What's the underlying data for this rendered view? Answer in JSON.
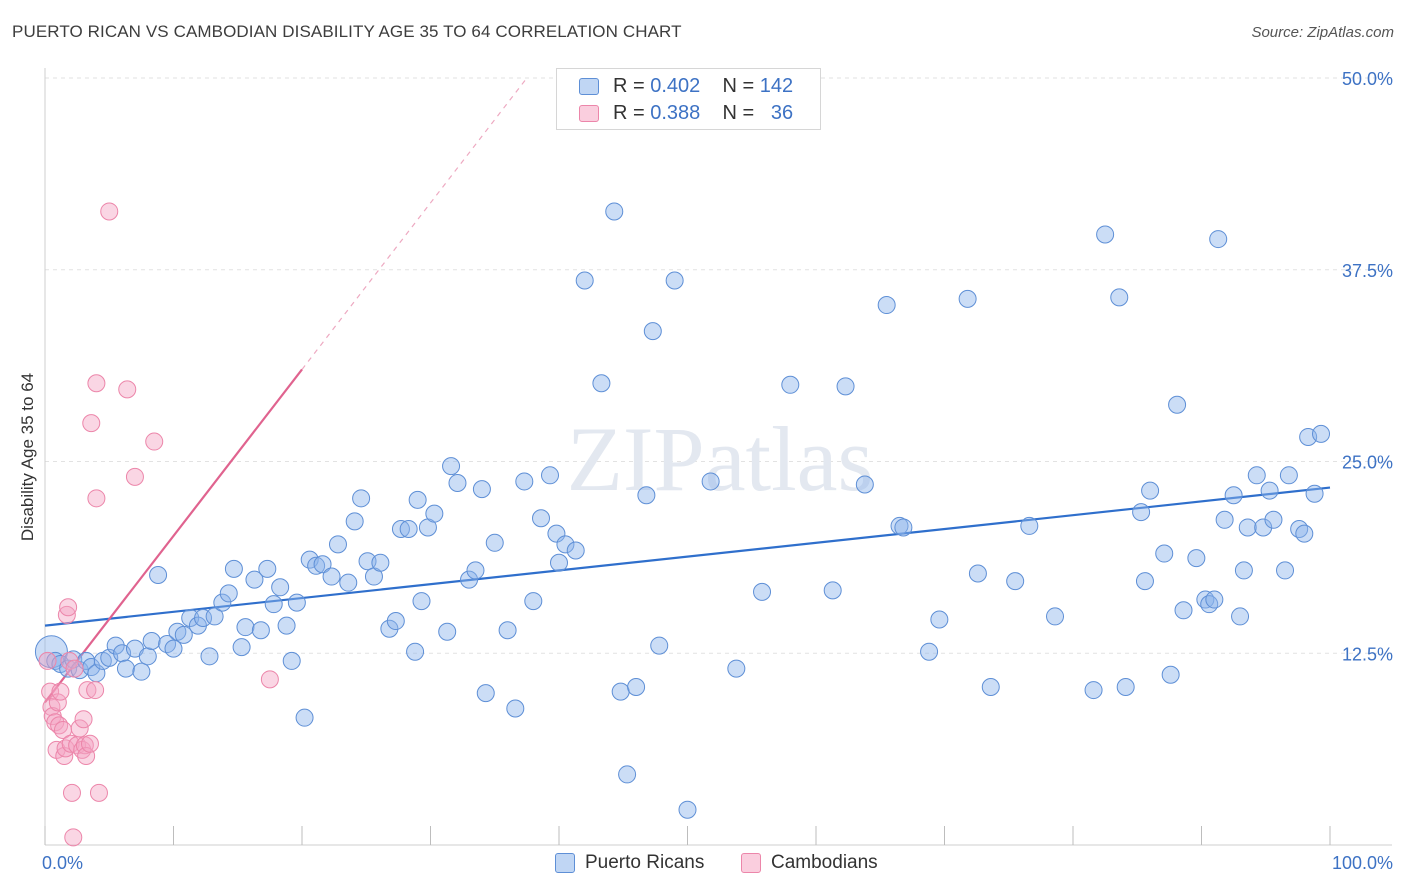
{
  "chart_data": {
    "type": "scatter",
    "title": "PUERTO RICAN VS CAMBODIAN DISABILITY AGE 35 TO 64 CORRELATION CHART",
    "source": "Source: ZipAtlas.com",
    "xlabel": "",
    "ylabel": "Disability Age 35 to 64",
    "x_tick_labels": [
      "0.0%",
      "100.0%"
    ],
    "y_tick_labels": [
      "12.5%",
      "25.0%",
      "37.5%",
      "50.0%"
    ],
    "y_tick_values": [
      12.5,
      25.0,
      37.5,
      50.0
    ],
    "xlim": [
      0,
      100
    ],
    "ylim": [
      0,
      50
    ],
    "watermark": "ZIPatlas",
    "legend": [
      {
        "name": "Puerto Ricans",
        "r_label": "R =",
        "r_value": "0.402",
        "n_label": "N =",
        "n_value": "142",
        "color": "#7ba7e6"
      },
      {
        "name": "Cambodians",
        "r_label": "R =",
        "r_value": "0.388",
        "n_label": "N =",
        "n_value": "36",
        "color": "#f08eb0"
      }
    ],
    "series": [
      {
        "name": "Puerto Ricans",
        "fill": "rgba(140,180,235,0.45)",
        "stroke": "#5e8fd6",
        "trend": {
          "x": [
            0,
            100
          ],
          "y": [
            14.3,
            23.3
          ],
          "color": "#2f6fcc"
        },
        "points": [
          [
            0.5,
            12.6
          ],
          [
            0.8,
            12.0
          ],
          [
            1.2,
            11.8
          ],
          [
            1.8,
            11.5
          ],
          [
            2.2,
            12.1
          ],
          [
            2.7,
            11.4
          ],
          [
            3.2,
            12.0
          ],
          [
            3.6,
            11.6
          ],
          [
            4.0,
            11.2
          ],
          [
            4.5,
            12.0
          ],
          [
            5.0,
            12.2
          ],
          [
            5.5,
            13.0
          ],
          [
            6.0,
            12.5
          ],
          [
            6.3,
            11.5
          ],
          [
            7.0,
            12.8
          ],
          [
            7.5,
            11.3
          ],
          [
            8.0,
            12.3
          ],
          [
            8.3,
            13.3
          ],
          [
            8.8,
            17.6
          ],
          [
            9.5,
            13.1
          ],
          [
            10.0,
            12.8
          ],
          [
            10.3,
            13.9
          ],
          [
            10.8,
            13.7
          ],
          [
            11.3,
            14.8
          ],
          [
            11.9,
            14.3
          ],
          [
            12.3,
            14.8
          ],
          [
            12.8,
            12.3
          ],
          [
            13.2,
            14.9
          ],
          [
            13.8,
            15.8
          ],
          [
            14.3,
            16.4
          ],
          [
            14.7,
            18.0
          ],
          [
            15.3,
            12.9
          ],
          [
            15.6,
            14.2
          ],
          [
            16.3,
            17.3
          ],
          [
            16.8,
            14.0
          ],
          [
            17.3,
            18.0
          ],
          [
            17.8,
            15.7
          ],
          [
            18.3,
            16.8
          ],
          [
            18.8,
            14.3
          ],
          [
            19.2,
            12.0
          ],
          [
            19.6,
            15.8
          ],
          [
            20.2,
            8.3
          ],
          [
            20.6,
            18.6
          ],
          [
            21.1,
            18.2
          ],
          [
            21.6,
            18.3
          ],
          [
            22.3,
            17.5
          ],
          [
            22.8,
            19.6
          ],
          [
            23.6,
            17.1
          ],
          [
            24.1,
            21.1
          ],
          [
            24.6,
            22.6
          ],
          [
            25.1,
            18.5
          ],
          [
            25.6,
            17.5
          ],
          [
            26.1,
            18.4
          ],
          [
            26.8,
            14.1
          ],
          [
            27.3,
            14.6
          ],
          [
            27.7,
            20.6
          ],
          [
            28.3,
            20.6
          ],
          [
            28.8,
            12.6
          ],
          [
            29.0,
            22.5
          ],
          [
            29.3,
            15.9
          ],
          [
            29.8,
            20.7
          ],
          [
            30.3,
            21.6
          ],
          [
            31.3,
            13.9
          ],
          [
            31.6,
            24.7
          ],
          [
            32.1,
            23.6
          ],
          [
            33.0,
            17.3
          ],
          [
            33.5,
            17.9
          ],
          [
            34.0,
            23.2
          ],
          [
            34.3,
            9.9
          ],
          [
            35.0,
            19.7
          ],
          [
            36.0,
            14.0
          ],
          [
            36.6,
            8.9
          ],
          [
            37.3,
            23.7
          ],
          [
            38.0,
            15.9
          ],
          [
            38.6,
            21.3
          ],
          [
            39.3,
            24.1
          ],
          [
            39.8,
            20.3
          ],
          [
            40.0,
            18.4
          ],
          [
            40.5,
            19.6
          ],
          [
            41.3,
            19.2
          ],
          [
            42.0,
            36.8
          ],
          [
            43.3,
            30.1
          ],
          [
            44.3,
            41.3
          ],
          [
            44.8,
            10.0
          ],
          [
            45.3,
            4.6
          ],
          [
            46.0,
            10.3
          ],
          [
            46.8,
            22.8
          ],
          [
            47.3,
            33.5
          ],
          [
            47.8,
            13.0
          ],
          [
            49.0,
            36.8
          ],
          [
            50.0,
            2.3
          ],
          [
            51.8,
            23.7
          ],
          [
            53.8,
            11.5
          ],
          [
            55.8,
            16.5
          ],
          [
            58.0,
            30.0
          ],
          [
            61.3,
            16.6
          ],
          [
            62.3,
            29.9
          ],
          [
            63.8,
            23.5
          ],
          [
            65.5,
            35.2
          ],
          [
            66.5,
            20.8
          ],
          [
            66.8,
            20.7
          ],
          [
            68.8,
            12.6
          ],
          [
            69.6,
            14.7
          ],
          [
            71.8,
            35.6
          ],
          [
            72.6,
            17.7
          ],
          [
            73.6,
            10.3
          ],
          [
            75.5,
            17.2
          ],
          [
            76.6,
            20.8
          ],
          [
            78.6,
            14.9
          ],
          [
            81.6,
            10.1
          ],
          [
            82.5,
            39.8
          ],
          [
            83.6,
            35.7
          ],
          [
            84.1,
            10.3
          ],
          [
            85.3,
            21.7
          ],
          [
            85.6,
            17.2
          ],
          [
            86.0,
            23.1
          ],
          [
            87.1,
            19.0
          ],
          [
            87.6,
            11.1
          ],
          [
            88.1,
            28.7
          ],
          [
            88.6,
            15.3
          ],
          [
            89.6,
            18.7
          ],
          [
            90.3,
            16.0
          ],
          [
            90.6,
            15.7
          ],
          [
            91.0,
            16.0
          ],
          [
            91.3,
            39.5
          ],
          [
            91.8,
            21.2
          ],
          [
            92.5,
            22.8
          ],
          [
            93.0,
            14.9
          ],
          [
            93.3,
            17.9
          ],
          [
            93.6,
            20.7
          ],
          [
            94.3,
            24.1
          ],
          [
            94.8,
            20.7
          ],
          [
            95.3,
            23.1
          ],
          [
            95.6,
            21.2
          ],
          [
            96.5,
            17.9
          ],
          [
            96.8,
            24.1
          ],
          [
            97.6,
            20.6
          ],
          [
            98.0,
            20.3
          ],
          [
            98.3,
            26.6
          ],
          [
            98.8,
            22.9
          ],
          [
            99.3,
            26.8
          ]
        ]
      },
      {
        "name": "Cambodians",
        "fill": "rgba(245,165,195,0.45)",
        "stroke": "#ec86aa",
        "trend": {
          "x": [
            0,
            20
          ],
          "y": [
            9.3,
            31.0
          ],
          "color": "#e0638f",
          "dash_to": [
            37.5,
            50
          ]
        },
        "points": [
          [
            0.2,
            12.0
          ],
          [
            0.4,
            10.0
          ],
          [
            0.5,
            9.0
          ],
          [
            0.6,
            8.4
          ],
          [
            0.8,
            8.0
          ],
          [
            0.9,
            6.2
          ],
          [
            1.0,
            9.3
          ],
          [
            1.1,
            7.8
          ],
          [
            1.2,
            10.0
          ],
          [
            1.4,
            7.5
          ],
          [
            1.5,
            5.8
          ],
          [
            1.6,
            6.3
          ],
          [
            1.7,
            15.0
          ],
          [
            1.8,
            15.5
          ],
          [
            1.9,
            12.0
          ],
          [
            2.0,
            6.6
          ],
          [
            2.1,
            3.4
          ],
          [
            2.2,
            0.5
          ],
          [
            2.3,
            11.5
          ],
          [
            2.5,
            6.5
          ],
          [
            2.7,
            7.6
          ],
          [
            2.9,
            6.2
          ],
          [
            3.0,
            8.2
          ],
          [
            3.1,
            6.5
          ],
          [
            3.2,
            5.8
          ],
          [
            3.3,
            10.1
          ],
          [
            3.5,
            6.6
          ],
          [
            3.6,
            27.5
          ],
          [
            3.9,
            10.1
          ],
          [
            4.0,
            22.6
          ],
          [
            4.0,
            30.1
          ],
          [
            4.2,
            3.4
          ],
          [
            5.0,
            41.3
          ],
          [
            6.4,
            29.7
          ],
          [
            7.0,
            24.0
          ],
          [
            8.5,
            26.3
          ],
          [
            17.5,
            10.8
          ]
        ]
      }
    ]
  }
}
